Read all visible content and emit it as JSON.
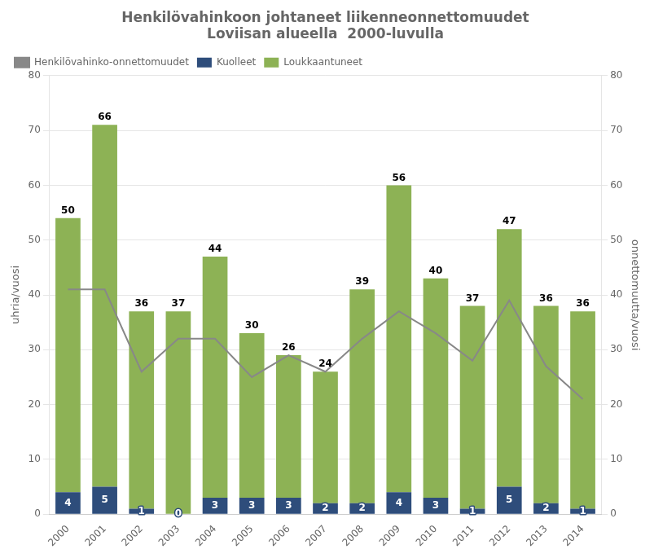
{
  "chart_data": {
    "type": "bar",
    "title": "Henkilövahinkoon johtaneet liikenneonnettomuudet\nLoviisan alueella  2000-luvulla",
    "categories": [
      "2000",
      "2001",
      "2002",
      "2003",
      "2004",
      "2005",
      "2006",
      "2007",
      "2008",
      "2009",
      "2010",
      "2011",
      "2012",
      "2013",
      "2014"
    ],
    "series": [
      {
        "name": "Kuolleet",
        "color": "#2e4d7b",
        "data_labels": true,
        "values": [
          4,
          5,
          1,
          0,
          3,
          3,
          3,
          2,
          2,
          4,
          3,
          1,
          5,
          2,
          1
        ]
      },
      {
        "name": "Loukkaantuneet",
        "color": "#8db255",
        "data_labels": true,
        "values": [
          50,
          66,
          36,
          37,
          44,
          30,
          26,
          24,
          39,
          56,
          40,
          37,
          47,
          36,
          36
        ]
      },
      {
        "name": "Henkilövahinko-onnettomuudet",
        "color": "#888888",
        "type": "line",
        "axis": "y2",
        "marker": "none",
        "line_style": "solid",
        "data_labels": false,
        "values": [
          41,
          41,
          26,
          32,
          32,
          25,
          29,
          26,
          32,
          37,
          33,
          28,
          39,
          27,
          21
        ]
      }
    ],
    "stacked": true,
    "ylabel": "uhria/vuosi",
    "y2label": "onnettomuutta/vuosi",
    "ylim": [
      0,
      80
    ],
    "yticks": [
      0,
      10,
      20,
      30,
      40,
      50,
      60,
      70,
      80
    ],
    "y2lim": [
      0,
      80
    ],
    "y2ticks": [
      0,
      10,
      20,
      30,
      40,
      50,
      60,
      70,
      80
    ],
    "grid": true,
    "legend": "upper left"
  }
}
